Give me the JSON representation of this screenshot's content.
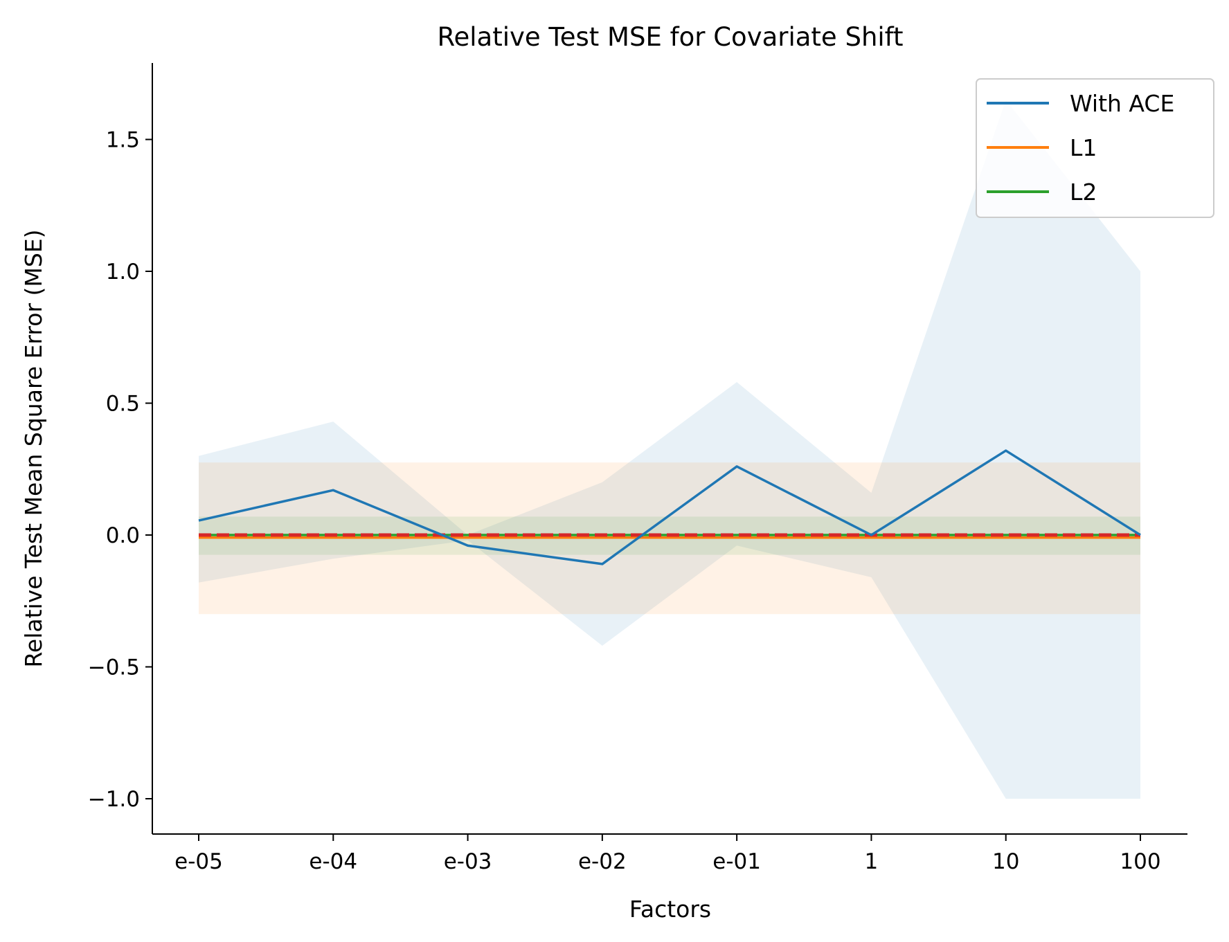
{
  "chart_data": {
    "type": "line",
    "title": "Relative Test MSE for Covariate Shift",
    "xlabel": "Factors",
    "ylabel": "Relative Test Mean Square Error (MSE)",
    "categories": [
      "e-05",
      "e-04",
      "e-03",
      "e-02",
      "e-01",
      "1",
      "10",
      "100"
    ],
    "yticks": [
      "1.5",
      "1.0",
      "0.5",
      "0.0",
      "−0.5",
      "−1.0"
    ],
    "ytick_values": [
      1.5,
      1.0,
      0.5,
      0.0,
      -0.5,
      -1.0
    ],
    "ylim": [
      -1.14,
      1.8
    ],
    "grid": false,
    "legend_position": "top-right",
    "series": [
      {
        "name": "With ACE",
        "color": "#1f77b4",
        "style": "solid",
        "values": [
          0.055,
          0.17,
          -0.04,
          -0.11,
          0.26,
          0.0,
          0.32,
          0.0
        ],
        "band_upper": [
          0.3,
          0.43,
          0.0,
          0.2,
          0.58,
          0.16,
          1.65,
          1.0
        ],
        "band_lower": [
          -0.18,
          -0.09,
          -0.02,
          -0.42,
          -0.04,
          -0.16,
          -1.0,
          -1.0
        ],
        "band_color": "#1f77b4"
      },
      {
        "name": "L1",
        "color": "#ff7f0e",
        "style": "solid",
        "values": [
          -0.01,
          -0.01,
          -0.01,
          -0.01,
          -0.01,
          -0.01,
          -0.01,
          -0.01
        ],
        "band_upper": [
          0.275,
          0.275,
          0.275,
          0.275,
          0.275,
          0.275,
          0.275,
          0.275
        ],
        "band_lower": [
          -0.3,
          -0.3,
          -0.3,
          -0.3,
          -0.3,
          -0.3,
          -0.3,
          -0.3
        ],
        "band_color": "#ff7f0e"
      },
      {
        "name": "L2",
        "color": "#2ca02c",
        "style": "solid",
        "values": [
          0.0,
          0.0,
          0.0,
          0.0,
          0.0,
          0.0,
          0.0,
          0.0
        ],
        "band_upper": [
          0.07,
          0.07,
          0.07,
          0.07,
          0.07,
          0.07,
          0.07,
          0.07
        ],
        "band_lower": [
          -0.075,
          -0.075,
          -0.075,
          -0.075,
          -0.075,
          -0.075,
          -0.075,
          -0.075
        ],
        "band_color": "#2ca02c"
      },
      {
        "color": "#d62728",
        "style": "dashed",
        "values": [
          0.0,
          0.0,
          0.0,
          0.0,
          0.0,
          0.0,
          0.0,
          0.0
        ]
      }
    ]
  }
}
